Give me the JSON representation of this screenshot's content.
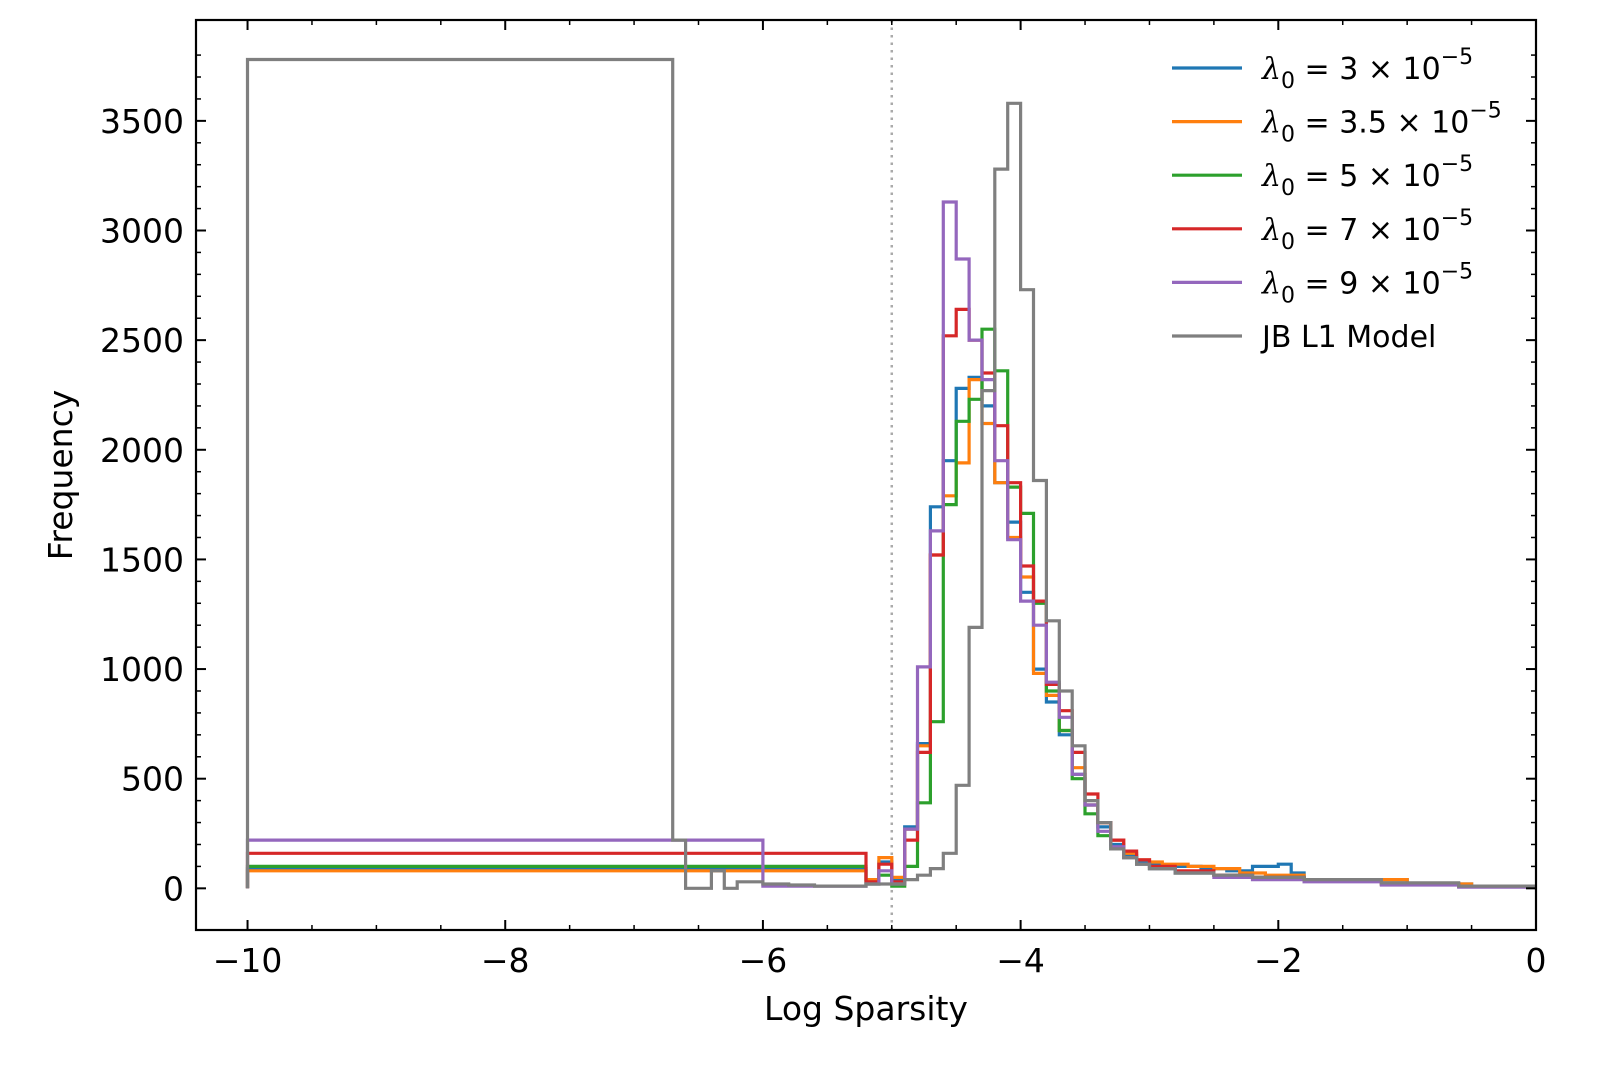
{
  "chart_data": {
    "type": "histogram",
    "xlabel": "Log Sparsity",
    "ylabel": "Frequency",
    "xlim": [
      -10.4,
      0
    ],
    "ylim": [
      -190,
      3960
    ],
    "xticks": [
      -10,
      -8,
      -6,
      -4,
      -2,
      0
    ],
    "xtick_labels": [
      "−10",
      "−8",
      "−6",
      "−4",
      "−2",
      "0"
    ],
    "yticks": [
      0,
      500,
      1000,
      1500,
      2000,
      2500,
      3000,
      3500
    ],
    "ytick_labels": [
      "0",
      "500",
      "1000",
      "1500",
      "2000",
      "2500",
      "3000",
      "3500"
    ],
    "vline": {
      "x": -5,
      "style": "dotted",
      "color": "#aaaaaa"
    },
    "legend_position": "top-right",
    "series": [
      {
        "name": "λ0 = 3 × 10^-5",
        "legend": {
          "sym": "λ",
          "sub": "0",
          "eq": " = 3 × 10",
          "exp": "−5"
        },
        "color": "#1f77b4",
        "points": [
          [
            -10,
            90
          ],
          [
            -5.2,
            40
          ],
          [
            -5.1,
            120
          ],
          [
            -5.0,
            40
          ],
          [
            -4.9,
            280
          ],
          [
            -4.8,
            660
          ],
          [
            -4.7,
            1740
          ],
          [
            -4.6,
            1950
          ],
          [
            -4.5,
            2280
          ],
          [
            -4.4,
            2330
          ],
          [
            -4.3,
            2200
          ],
          [
            -4.2,
            1850
          ],
          [
            -4.1,
            1670
          ],
          [
            -4.0,
            1350
          ],
          [
            -3.9,
            1000
          ],
          [
            -3.8,
            850
          ],
          [
            -3.7,
            700
          ],
          [
            -3.6,
            520
          ],
          [
            -3.5,
            380
          ],
          [
            -3.4,
            280
          ],
          [
            -3.3,
            200
          ],
          [
            -3.2,
            150
          ],
          [
            -3.1,
            120
          ],
          [
            -3.0,
            110
          ],
          [
            -2.9,
            100
          ],
          [
            -2.6,
            90
          ],
          [
            -2.4,
            80
          ],
          [
            -2.2,
            100
          ],
          [
            -2.0,
            110
          ],
          [
            -1.9,
            70
          ],
          [
            -1.8,
            40
          ],
          [
            -1.0,
            20
          ],
          [
            -0.5,
            10
          ],
          [
            0.0,
            5
          ]
        ]
      },
      {
        "name": "λ0 = 3.5 × 10^-5",
        "legend": {
          "sym": "λ",
          "sub": "0",
          "eq": " = 3.5 × 10",
          "exp": "−5"
        },
        "color": "#ff7f0e",
        "points": [
          [
            -10,
            80
          ],
          [
            -5.2,
            40
          ],
          [
            -5.1,
            140
          ],
          [
            -5.0,
            50
          ],
          [
            -4.9,
            270
          ],
          [
            -4.8,
            650
          ],
          [
            -4.7,
            1520
          ],
          [
            -4.6,
            1790
          ],
          [
            -4.5,
            1940
          ],
          [
            -4.4,
            2320
          ],
          [
            -4.3,
            2120
          ],
          [
            -4.2,
            1850
          ],
          [
            -4.1,
            1600
          ],
          [
            -4.0,
            1420
          ],
          [
            -3.9,
            980
          ],
          [
            -3.8,
            880
          ],
          [
            -3.7,
            720
          ],
          [
            -3.6,
            550
          ],
          [
            -3.5,
            380
          ],
          [
            -3.4,
            300
          ],
          [
            -3.3,
            220
          ],
          [
            -3.2,
            160
          ],
          [
            -3.1,
            130
          ],
          [
            -3.0,
            120
          ],
          [
            -2.9,
            110
          ],
          [
            -2.7,
            100
          ],
          [
            -2.5,
            90
          ],
          [
            -2.3,
            70
          ],
          [
            -2.1,
            60
          ],
          [
            -1.8,
            40
          ],
          [
            -1.0,
            20
          ],
          [
            -0.5,
            10
          ],
          [
            0.0,
            5
          ]
        ]
      },
      {
        "name": "λ0 = 5 × 10^-5",
        "legend": {
          "sym": "λ",
          "sub": "0",
          "eq": " = 5 × 10",
          "exp": "−5"
        },
        "color": "#2ca02c",
        "points": [
          [
            -10,
            100
          ],
          [
            -5.2,
            20
          ],
          [
            -5.1,
            60
          ],
          [
            -5.0,
            10
          ],
          [
            -4.9,
            100
          ],
          [
            -4.8,
            390
          ],
          [
            -4.7,
            760
          ],
          [
            -4.6,
            1750
          ],
          [
            -4.5,
            2130
          ],
          [
            -4.4,
            2230
          ],
          [
            -4.3,
            2550
          ],
          [
            -4.2,
            2360
          ],
          [
            -4.1,
            1830
          ],
          [
            -4.0,
            1710
          ],
          [
            -3.9,
            1300
          ],
          [
            -3.8,
            900
          ],
          [
            -3.7,
            720
          ],
          [
            -3.6,
            500
          ],
          [
            -3.5,
            340
          ],
          [
            -3.4,
            240
          ],
          [
            -3.3,
            180
          ],
          [
            -3.2,
            140
          ],
          [
            -3.1,
            110
          ],
          [
            -3.0,
            90
          ],
          [
            -2.8,
            70
          ],
          [
            -2.5,
            60
          ],
          [
            -2.2,
            50
          ],
          [
            -1.8,
            40
          ],
          [
            -1.2,
            20
          ],
          [
            -0.6,
            10
          ],
          [
            0.0,
            5
          ]
        ]
      },
      {
        "name": "λ0 = 7 × 10^-5",
        "legend": {
          "sym": "λ",
          "sub": "0",
          "eq": " = 7 × 10",
          "exp": "−5"
        },
        "color": "#d62728",
        "points": [
          [
            -10,
            160
          ],
          [
            -5.2,
            30
          ],
          [
            -5.1,
            110
          ],
          [
            -5.0,
            30
          ],
          [
            -4.9,
            220
          ],
          [
            -4.8,
            620
          ],
          [
            -4.7,
            1520
          ],
          [
            -4.6,
            2520
          ],
          [
            -4.5,
            2640
          ],
          [
            -4.4,
            2500
          ],
          [
            -4.3,
            2350
          ],
          [
            -4.2,
            2110
          ],
          [
            -4.1,
            1850
          ],
          [
            -4.0,
            1470
          ],
          [
            -3.9,
            1310
          ],
          [
            -3.8,
            930
          ],
          [
            -3.7,
            810
          ],
          [
            -3.6,
            620
          ],
          [
            -3.5,
            430
          ],
          [
            -3.4,
            300
          ],
          [
            -3.3,
            220
          ],
          [
            -3.2,
            170
          ],
          [
            -3.1,
            130
          ],
          [
            -3.0,
            100
          ],
          [
            -2.8,
            80
          ],
          [
            -2.5,
            60
          ],
          [
            -2.2,
            50
          ],
          [
            -1.8,
            40
          ],
          [
            -1.2,
            20
          ],
          [
            -0.6,
            10
          ],
          [
            0.0,
            5
          ]
        ]
      },
      {
        "name": "λ0 = 9 × 10^-5",
        "legend": {
          "sym": "λ",
          "sub": "0",
          "eq": " = 9 × 10",
          "exp": "−5"
        },
        "color": "#9467bd",
        "points": [
          [
            -10,
            220
          ],
          [
            -6.0,
            10
          ],
          [
            -5.2,
            20
          ],
          [
            -5.1,
            80
          ],
          [
            -5.0,
            20
          ],
          [
            -4.9,
            270
          ],
          [
            -4.8,
            1010
          ],
          [
            -4.7,
            1630
          ],
          [
            -4.6,
            3130
          ],
          [
            -4.5,
            2870
          ],
          [
            -4.4,
            2500
          ],
          [
            -4.3,
            2320
          ],
          [
            -4.2,
            1950
          ],
          [
            -4.1,
            1590
          ],
          [
            -4.0,
            1310
          ],
          [
            -3.9,
            1200
          ],
          [
            -3.8,
            940
          ],
          [
            -3.7,
            780
          ],
          [
            -3.6,
            520
          ],
          [
            -3.5,
            380
          ],
          [
            -3.4,
            260
          ],
          [
            -3.3,
            190
          ],
          [
            -3.2,
            140
          ],
          [
            -3.1,
            110
          ],
          [
            -3.0,
            90
          ],
          [
            -2.8,
            70
          ],
          [
            -2.5,
            50
          ],
          [
            -2.2,
            40
          ],
          [
            -1.8,
            30
          ],
          [
            -1.2,
            15
          ],
          [
            -0.6,
            5
          ],
          [
            0.0,
            2
          ]
        ]
      },
      {
        "name": "JB L1 Model",
        "legend": {
          "text": "JB L1 Model"
        },
        "color": "#7f7f7f",
        "points": [
          [
            -10,
            3780
          ],
          [
            -6.7,
            220
          ],
          [
            -6.6,
            0
          ],
          [
            -6.4,
            80
          ],
          [
            -6.3,
            0
          ],
          [
            -6.2,
            30
          ],
          [
            -6.0,
            20
          ],
          [
            -5.8,
            15
          ],
          [
            -5.6,
            10
          ],
          [
            -5.2,
            20
          ],
          [
            -5.0,
            20
          ],
          [
            -4.9,
            40
          ],
          [
            -4.8,
            60
          ],
          [
            -4.7,
            90
          ],
          [
            -4.6,
            160
          ],
          [
            -4.5,
            470
          ],
          [
            -4.4,
            1190
          ],
          [
            -4.3,
            2270
          ],
          [
            -4.2,
            3280
          ],
          [
            -4.1,
            3580
          ],
          [
            -4.0,
            2730
          ],
          [
            -3.9,
            1860
          ],
          [
            -3.8,
            1220
          ],
          [
            -3.7,
            900
          ],
          [
            -3.6,
            650
          ],
          [
            -3.5,
            400
          ],
          [
            -3.4,
            300
          ],
          [
            -3.3,
            180
          ],
          [
            -3.2,
            140
          ],
          [
            -3.1,
            110
          ],
          [
            -3.0,
            90
          ],
          [
            -2.8,
            70
          ],
          [
            -2.5,
            60
          ],
          [
            -2.2,
            50
          ],
          [
            -1.8,
            40
          ],
          [
            -1.2,
            25
          ],
          [
            -0.6,
            10
          ],
          [
            0.0,
            5
          ]
        ]
      }
    ]
  }
}
